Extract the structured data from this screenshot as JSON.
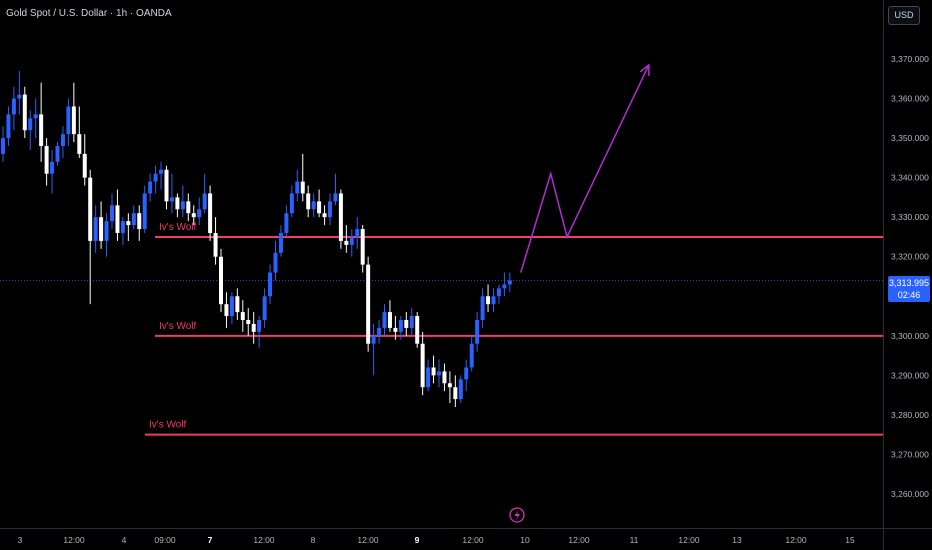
{
  "header": {
    "symbol": "Gold Spot / U.S. Dollar · 1h · OANDA"
  },
  "currency_button": {
    "label": "USD"
  },
  "last_price": {
    "value": "3,313.995",
    "countdown": "02:46"
  },
  "colors": {
    "background": "#000000",
    "up_candle": "#2962ff",
    "down_candle": "#ffffff",
    "level_line": "#f23b6a",
    "projection": "#b02ed1",
    "axis_text": "#b2b5be",
    "last_price": "#2962ff"
  },
  "chart_data": {
    "type": "candlestick",
    "title": "",
    "y_axis": {
      "ticks": [
        "3,370.000",
        "3,360.000",
        "3,350.000",
        "3,340.000",
        "3,330.000",
        "3,320.000",
        "3,300.000",
        "3,290.000",
        "3,280.000",
        "3,270.000",
        "3,260.000"
      ],
      "range": [
        3255,
        3382
      ]
    },
    "x_axis": {
      "ticks": [
        "3",
        "12:00",
        "4",
        "09:00",
        "7",
        "12:00",
        "8",
        "12:00",
        "9",
        "12:00",
        "10",
        "12:00",
        "11",
        "12:00",
        "13",
        "12:00",
        "15"
      ],
      "bold_ticks": [
        "7",
        "9"
      ]
    },
    "candles": [
      [
        3346,
        3353,
        3344,
        3350
      ],
      [
        3350,
        3358,
        3348,
        3356
      ],
      [
        3356,
        3363,
        3352,
        3360
      ],
      [
        3360,
        3367,
        3356,
        3361
      ],
      [
        3361,
        3363,
        3350,
        3352
      ],
      [
        3352,
        3357,
        3347,
        3355
      ],
      [
        3355,
        3360,
        3350,
        3356
      ],
      [
        3356,
        3364,
        3344,
        3348
      ],
      [
        3348,
        3350,
        3338,
        3341
      ],
      [
        3341,
        3347,
        3336,
        3344
      ],
      [
        3344,
        3349,
        3343,
        3348
      ],
      [
        3348,
        3353,
        3345,
        3351
      ],
      [
        3351,
        3360,
        3348,
        3358
      ],
      [
        3358,
        3364,
        3349,
        3351
      ],
      [
        3351,
        3358,
        3345,
        3346
      ],
      [
        3346,
        3351,
        3338,
        3340
      ],
      [
        3340,
        3342,
        3308,
        3324
      ],
      [
        3324,
        3333,
        3321,
        3330
      ],
      [
        3330,
        3334,
        3322,
        3324
      ],
      [
        3324,
        3331,
        3320,
        3329
      ],
      [
        3329,
        3336,
        3327,
        3333
      ],
      [
        3333,
        3337,
        3324,
        3326
      ],
      [
        3326,
        3330,
        3323,
        3329
      ],
      [
        3329,
        3331,
        3324,
        3328
      ],
      [
        3328,
        3333,
        3327,
        3331
      ],
      [
        3331,
        3333,
        3324,
        3327
      ],
      [
        3327,
        3338,
        3326,
        3336
      ],
      [
        3336,
        3341,
        3334,
        3339
      ],
      [
        3339,
        3343,
        3336,
        3341
      ],
      [
        3341,
        3344,
        3337,
        3342
      ],
      [
        3342,
        3343,
        3332,
        3334
      ],
      [
        3334,
        3341,
        3331,
        3335
      ],
      [
        3335,
        3336,
        3330,
        3332
      ],
      [
        3332,
        3338,
        3330,
        3334
      ],
      [
        3334,
        3336,
        3329,
        3331
      ],
      [
        3331,
        3333,
        3328,
        3330
      ],
      [
        3330,
        3335,
        3328,
        3332
      ],
      [
        3332,
        3341,
        3331,
        3336
      ],
      [
        3336,
        3338,
        3324,
        3326
      ],
      [
        3326,
        3330,
        3318,
        3320
      ],
      [
        3320,
        3322,
        3306,
        3308
      ],
      [
        3308,
        3311,
        3302,
        3305
      ],
      [
        3305,
        3311,
        3303,
        3310
      ],
      [
        3310,
        3312,
        3304,
        3306
      ],
      [
        3306,
        3309,
        3301,
        3304
      ],
      [
        3304,
        3307,
        3300,
        3303
      ],
      [
        3303,
        3306,
        3298,
        3301
      ],
      [
        3301,
        3305,
        3297,
        3304
      ],
      [
        3304,
        3312,
        3302,
        3310
      ],
      [
        3310,
        3318,
        3308,
        3316
      ],
      [
        3316,
        3324,
        3314,
        3321
      ],
      [
        3321,
        3328,
        3320,
        3326
      ],
      [
        3326,
        3333,
        3325,
        3331
      ],
      [
        3331,
        3338,
        3330,
        3336
      ],
      [
        3336,
        3342,
        3334,
        3339
      ],
      [
        3339,
        3346,
        3334,
        3336
      ],
      [
        3336,
        3338,
        3330,
        3332
      ],
      [
        3332,
        3336,
        3330,
        3334
      ],
      [
        3334,
        3337,
        3330,
        3331
      ],
      [
        3331,
        3333,
        3328,
        3330
      ],
      [
        3330,
        3336,
        3328,
        3334
      ],
      [
        3334,
        3341,
        3333,
        3336
      ],
      [
        3336,
        3337,
        3322,
        3324
      ],
      [
        3324,
        3328,
        3321,
        3323
      ],
      [
        3323,
        3327,
        3320,
        3325
      ],
      [
        3325,
        3330,
        3322,
        3327
      ],
      [
        3327,
        3328,
        3316,
        3318
      ],
      [
        3318,
        3320,
        3296,
        3298
      ],
      [
        3298,
        3303,
        3290,
        3300
      ],
      [
        3300,
        3304,
        3298,
        3302
      ],
      [
        3302,
        3308,
        3300,
        3306
      ],
      [
        3306,
        3309,
        3301,
        3302
      ],
      [
        3302,
        3305,
        3299,
        3301
      ],
      [
        3301,
        3305,
        3299,
        3304
      ],
      [
        3304,
        3306,
        3300,
        3302
      ],
      [
        3302,
        3307,
        3300,
        3305
      ],
      [
        3305,
        3306,
        3297,
        3298
      ],
      [
        3298,
        3301,
        3285,
        3287
      ],
      [
        3287,
        3294,
        3286,
        3292
      ],
      [
        3292,
        3295,
        3288,
        3290
      ],
      [
        3290,
        3294,
        3287,
        3291
      ],
      [
        3291,
        3293,
        3286,
        3288
      ],
      [
        3288,
        3291,
        3283,
        3287
      ],
      [
        3287,
        3290,
        3282,
        3284
      ],
      [
        3284,
        3290,
        3283,
        3289
      ],
      [
        3289,
        3294,
        3286,
        3292
      ],
      [
        3292,
        3300,
        3291,
        3298
      ],
      [
        3298,
        3306,
        3296,
        3304
      ],
      [
        3304,
        3312,
        3302,
        3310
      ],
      [
        3310,
        3313,
        3306,
        3308
      ],
      [
        3308,
        3312,
        3306,
        3310
      ],
      [
        3310,
        3313,
        3308,
        3312
      ],
      [
        3312,
        3316,
        3310,
        3313
      ],
      [
        3313,
        3316,
        3311,
        3314
      ]
    ],
    "levels": [
      {
        "label": "Iv's Wolf",
        "price": 3325.0
      },
      {
        "label": "Iv's Wolf",
        "price": 3300.0
      },
      {
        "label": "Iv's Wolf",
        "price": 3275.0
      }
    ],
    "current_price": 3313.995,
    "projection_path": [
      {
        "index": 95.0,
        "price": 3316.0
      },
      {
        "index": 100.5,
        "price": 3341.0
      },
      {
        "index": 103.5,
        "price": 3325.0
      },
      {
        "index": 118.5,
        "price": 3368.5
      }
    ]
  }
}
